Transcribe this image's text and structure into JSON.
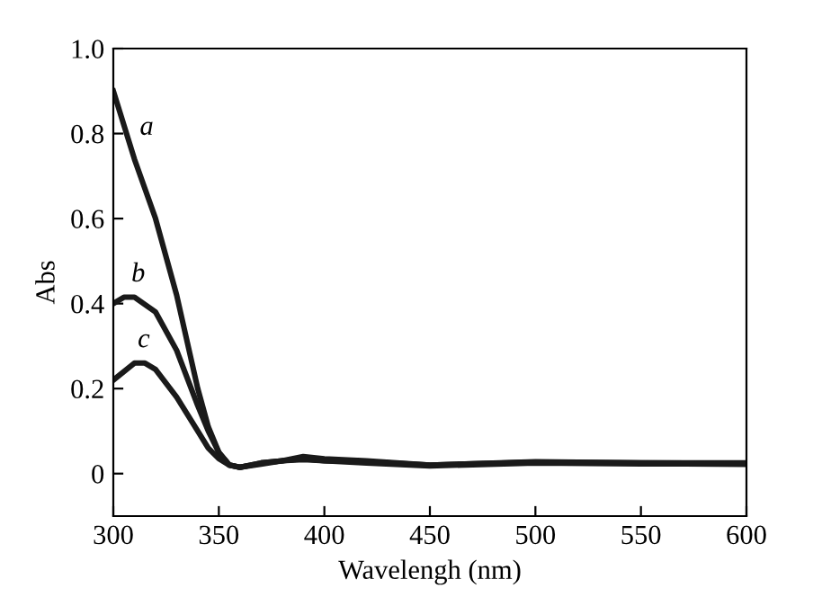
{
  "chart_data": {
    "type": "line",
    "xlabel": "Wavelengh (nm)",
    "ylabel": "Abs",
    "xlim": [
      300,
      600
    ],
    "xticks": [
      300,
      350,
      400,
      450,
      500,
      550,
      600
    ],
    "ylim": [
      -0.1,
      1.0
    ],
    "yticks": [
      0,
      0.2,
      0.4,
      0.6,
      0.8,
      {
        "value": 1.0,
        "label": "1.0"
      }
    ],
    "grid": false,
    "marker": "none",
    "line_style": "solid",
    "series": [
      {
        "color": "#1a1a1a",
        "x": [
          300,
          310,
          320,
          330,
          340,
          345,
          350,
          355,
          360,
          370,
          380,
          390,
          400,
          420,
          450,
          500,
          550,
          600
        ],
        "values": [
          0.9,
          0.74,
          0.6,
          0.42,
          0.2,
          0.11,
          0.05,
          0.02,
          0.015,
          0.025,
          0.03,
          0.04,
          0.035,
          0.03,
          0.02,
          0.028,
          0.025,
          0.025
        ]
      },
      {
        "color": "#1a1a1a",
        "x": [
          300,
          305,
          310,
          320,
          330,
          340,
          345,
          350,
          355,
          360,
          370,
          380,
          390,
          400,
          420,
          450,
          500,
          550,
          600
        ],
        "values": [
          0.4,
          0.415,
          0.415,
          0.38,
          0.29,
          0.16,
          0.1,
          0.05,
          0.02,
          0.015,
          0.025,
          0.03,
          0.035,
          0.03,
          0.028,
          0.02,
          0.027,
          0.025,
          0.024
        ]
      },
      {
        "color": "#1a1a1a",
        "x": [
          300,
          310,
          315,
          320,
          330,
          340,
          345,
          350,
          355,
          360,
          370,
          380,
          390,
          400,
          420,
          450,
          500,
          550,
          600
        ],
        "values": [
          0.22,
          0.26,
          0.26,
          0.245,
          0.18,
          0.1,
          0.06,
          0.035,
          0.02,
          0.015,
          0.022,
          0.03,
          0.033,
          0.03,
          0.025,
          0.018,
          0.025,
          0.023,
          0.022
        ]
      }
    ],
    "annotations": [
      {
        "text": "a",
        "x": 309,
        "y": 0.76
      },
      {
        "text": "b",
        "x": 305,
        "y": 0.415
      },
      {
        "text": "c",
        "x": 308,
        "y": 0.26
      }
    ]
  }
}
